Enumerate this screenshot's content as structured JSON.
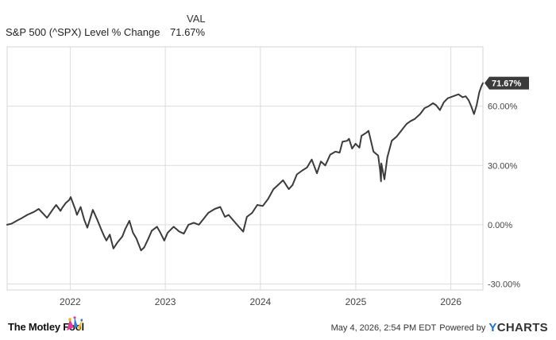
{
  "legend": {
    "header": "VAL",
    "series_name": "S&P 500 (^SPX) Level % Change",
    "series_value": "71.67%"
  },
  "footer": {
    "brand": "The Motley Fool",
    "timestamp": "May 4, 2026, 2:54 PM EDT",
    "powered_by": "Powered by",
    "provider": "CHARTS",
    "provider_mark": "Y"
  },
  "colors": {
    "line": "#3b3b3b",
    "grid": "#dcdcdc",
    "label_bg": "#3b3b3b"
  },
  "chart_data": {
    "type": "line",
    "title": "",
    "xlabel": "",
    "ylabel": "",
    "xlim": [
      "2021-05-04",
      "2026-05-04"
    ],
    "ylim": [
      -33,
      90
    ],
    "x_ticks": [
      {
        "x": "2022-01-01",
        "label": "2022"
      },
      {
        "x": "2023-01-01",
        "label": "2023"
      },
      {
        "x": "2024-01-01",
        "label": "2024"
      },
      {
        "x": "2025-01-01",
        "label": "2025"
      },
      {
        "x": "2026-01-01",
        "label": "2026"
      }
    ],
    "y_ticks": [
      {
        "y": -30,
        "label": "-30.00%"
      },
      {
        "y": 0,
        "label": "0.00%"
      },
      {
        "y": 30,
        "label": "30.00%"
      },
      {
        "y": 60,
        "label": "60.00%"
      }
    ],
    "grid": true,
    "end_label": "71.67%",
    "series": [
      {
        "x": [
          "2021-05-04",
          "2021-05-20",
          "2021-06-10",
          "2021-07-01",
          "2021-07-20",
          "2021-08-15",
          "2021-09-02",
          "2021-09-20",
          "2021-10-04",
          "2021-10-25",
          "2021-11-08",
          "2021-11-25",
          "2021-12-01",
          "2021-12-15",
          "2021-12-28",
          "2022-01-03",
          "2022-01-20",
          "2022-01-27",
          "2022-02-10",
          "2022-02-24",
          "2022-03-08",
          "2022-03-29",
          "2022-04-15",
          "2022-05-02",
          "2022-05-12",
          "2022-05-20",
          "2022-06-02",
          "2022-06-16",
          "2022-07-01",
          "2022-07-20",
          "2022-08-01",
          "2022-08-16",
          "2022-08-30",
          "2022-09-12",
          "2022-09-30",
          "2022-10-12",
          "2022-10-28",
          "2022-11-10",
          "2022-11-30",
          "2022-12-13",
          "2022-12-28",
          "2023-01-10",
          "2023-02-02",
          "2023-02-24",
          "2023-03-13",
          "2023-03-31",
          "2023-04-20",
          "2023-05-10",
          "2023-05-31",
          "2023-06-15",
          "2023-07-10",
          "2023-07-31",
          "2023-08-18",
          "2023-09-01",
          "2023-09-20",
          "2023-10-10",
          "2023-10-27",
          "2023-11-10",
          "2023-11-30",
          "2023-12-20",
          "2024-01-10",
          "2024-01-30",
          "2024-02-20",
          "2024-03-08",
          "2024-03-28",
          "2024-04-19",
          "2024-05-03",
          "2024-05-20",
          "2024-06-10",
          "2024-06-28",
          "2024-07-16",
          "2024-08-05",
          "2024-08-20",
          "2024-09-06",
          "2024-09-25",
          "2024-10-15",
          "2024-10-31",
          "2024-11-11",
          "2024-11-29",
          "2024-12-06",
          "2024-12-18",
          "2024-12-31",
          "2025-01-15",
          "2025-01-23",
          "2025-02-10",
          "2025-02-19",
          "2025-03-10",
          "2025-03-28",
          "2025-04-04",
          "2025-04-08",
          "2025-04-09",
          "2025-04-21",
          "2025-05-02",
          "2025-05-19",
          "2025-06-06",
          "2025-06-30",
          "2025-07-15",
          "2025-07-31",
          "2025-08-15",
          "2025-09-05",
          "2025-09-22",
          "2025-10-08",
          "2025-10-24",
          "2025-11-05",
          "2025-11-20",
          "2025-12-05",
          "2025-12-20",
          "2026-01-10",
          "2026-01-30",
          "2026-02-15",
          "2026-02-27",
          "2026-03-10",
          "2026-03-20",
          "2026-03-31",
          "2026-04-10",
          "2026-04-20",
          "2026-04-28",
          "2026-05-04"
        ],
        "y": [
          0.0,
          0.5,
          2.0,
          3.5,
          5.0,
          6.5,
          8.0,
          5.5,
          3.5,
          7.5,
          10.0,
          7.0,
          8.5,
          11.0,
          12.5,
          14.0,
          8.0,
          5.0,
          9.0,
          2.5,
          -1.5,
          7.5,
          2.5,
          -3.0,
          -6.0,
          -8.0,
          -5.0,
          -12.0,
          -9.0,
          -6.0,
          -2.0,
          2.0,
          -4.0,
          -7.0,
          -13.0,
          -11.5,
          -7.0,
          -3.0,
          -1.0,
          -4.0,
          -8.0,
          -4.0,
          -1.0,
          -3.5,
          -4.5,
          0.0,
          1.0,
          0.0,
          3.5,
          6.0,
          8.0,
          9.0,
          4.0,
          5.0,
          2.0,
          -1.0,
          -3.5,
          4.0,
          6.0,
          10.0,
          9.5,
          13.0,
          18.0,
          20.0,
          22.5,
          18.0,
          20.0,
          25.5,
          27.5,
          29.0,
          33.0,
          26.0,
          32.0,
          30.0,
          35.5,
          37.0,
          36.5,
          42.0,
          42.5,
          43.5,
          38.5,
          41.0,
          39.0,
          45.0,
          46.5,
          47.5,
          37.0,
          35.0,
          28.0,
          22.0,
          31.0,
          23.0,
          34.0,
          42.5,
          44.5,
          48.5,
          51.0,
          52.5,
          53.5,
          56.0,
          59.0,
          60.0,
          61.5,
          60.5,
          58.0,
          62.0,
          64.0,
          65.0,
          66.0,
          64.5,
          65.0,
          63.0,
          60.0,
          56.0,
          60.5,
          67.0,
          70.0,
          71.67
        ]
      }
    ]
  }
}
